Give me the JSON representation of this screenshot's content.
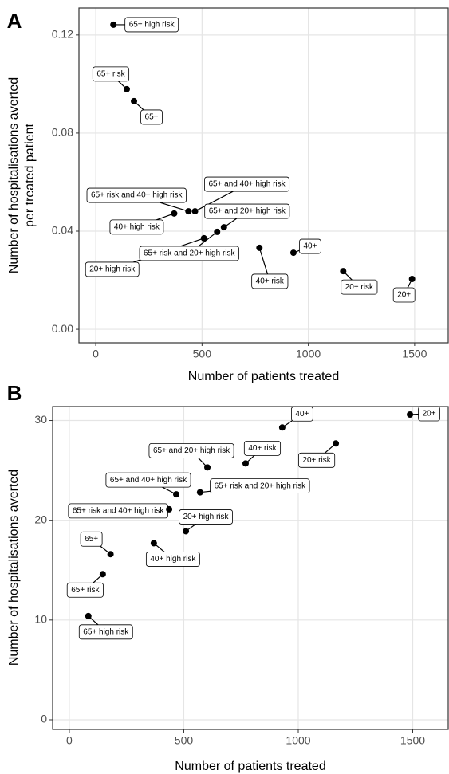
{
  "chart_data": [
    {
      "type": "scatter",
      "panel": "A",
      "xlabel": "Number of patients treated",
      "ylabel": [
        "Number of hospitalisations averted",
        "per treated patient"
      ],
      "xlim": [
        -79,
        1658
      ],
      "ylim": [
        -0.0055,
        0.131
      ],
      "xticks": [
        0,
        500,
        1000,
        1500
      ],
      "yticks": [
        {
          "value": 0,
          "label": "0.00"
        },
        {
          "value": 0.04,
          "label": "0.04"
        },
        {
          "value": 0.08,
          "label": "0.08"
        },
        {
          "value": 0.12,
          "label": "0.12"
        }
      ],
      "grid": true,
      "series": [
        {
          "color": "#000000",
          "labels": [
            "65+ high risk",
            "65+ risk",
            "65+",
            "40+ high risk",
            "65+ risk and 40+ high risk",
            "65+ and 40+ high risk",
            "20+ high risk",
            "65+ risk and 20+ high risk",
            "65+ and 20+ high risk",
            "40+ risk",
            "40+",
            "20+ risk",
            "20+"
          ],
          "x": [
            83,
            146,
            180,
            369,
            436,
            467,
            509,
            571,
            603,
            770,
            930,
            1164,
            1488
          ],
          "values": [
            0.1242,
            0.0979,
            0.093,
            0.0472,
            0.0481,
            0.0481,
            0.0371,
            0.0397,
            0.0416,
            0.0332,
            0.0312,
            0.0237,
            0.0205
          ]
        }
      ]
    },
    {
      "type": "scatter",
      "panel": "B",
      "xlabel": "Number of patients treated",
      "ylabel": [
        "Number of hospitalisations averted"
      ],
      "xlim": [
        -73,
        1655
      ],
      "ylim": [
        -0.96,
        31.4
      ],
      "xticks": [
        0,
        500,
        1000,
        1500
      ],
      "yticks": [
        0,
        10,
        20,
        30
      ],
      "grid": true,
      "series": [
        {
          "color": "#000000",
          "labels": [
            "65+ high risk",
            "65+ risk",
            "65+",
            "40+ high risk",
            "65+ risk and 40+ high risk",
            "65+ and 40+ high risk",
            "20+ high risk",
            "65+ risk and 20+ high risk",
            "65+ and 20+ high risk",
            "40+ risk",
            "40+",
            "20+ risk",
            "20+"
          ],
          "x": [
            83,
            146,
            180,
            369,
            436,
            467,
            509,
            571,
            603,
            770,
            930,
            1164,
            1488
          ],
          "values": [
            10.4,
            14.6,
            16.6,
            17.7,
            21.1,
            22.6,
            18.9,
            22.8,
            25.3,
            25.7,
            29.3,
            27.7,
            30.6
          ]
        }
      ]
    }
  ]
}
